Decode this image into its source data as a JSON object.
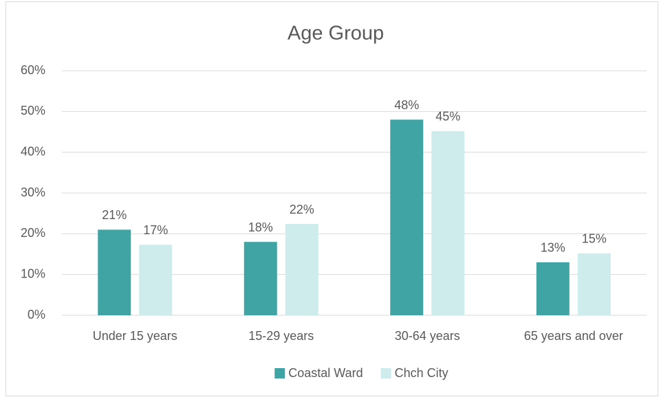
{
  "chart_data": {
    "type": "bar",
    "title": "Age Group",
    "categories": [
      "Under 15 years",
      "15-29 years",
      "30-64 years",
      "65 years and over"
    ],
    "series": [
      {
        "name": "Coastal Ward",
        "color": "#40a4a4",
        "values": [
          21,
          18,
          48,
          13
        ],
        "value_labels": [
          "21%",
          "18%",
          "48%",
          "13%"
        ]
      },
      {
        "name": "Chch City",
        "color": "#cdeceb",
        "values": [
          17.3,
          22.4,
          45.2,
          15.2
        ],
        "value_labels": [
          "17%",
          "22%",
          "45%",
          "15%"
        ]
      }
    ],
    "ylim": [
      0,
      60
    ],
    "yticks": [
      {
        "value": 0,
        "label": "0%"
      },
      {
        "value": 10,
        "label": "10%"
      },
      {
        "value": 20,
        "label": "20%"
      },
      {
        "value": 30,
        "label": "30%"
      },
      {
        "value": 40,
        "label": "40%"
      },
      {
        "value": 50,
        "label": "50%"
      },
      {
        "value": 60,
        "label": "60%"
      }
    ],
    "grid": true,
    "legend": "bottom"
  }
}
